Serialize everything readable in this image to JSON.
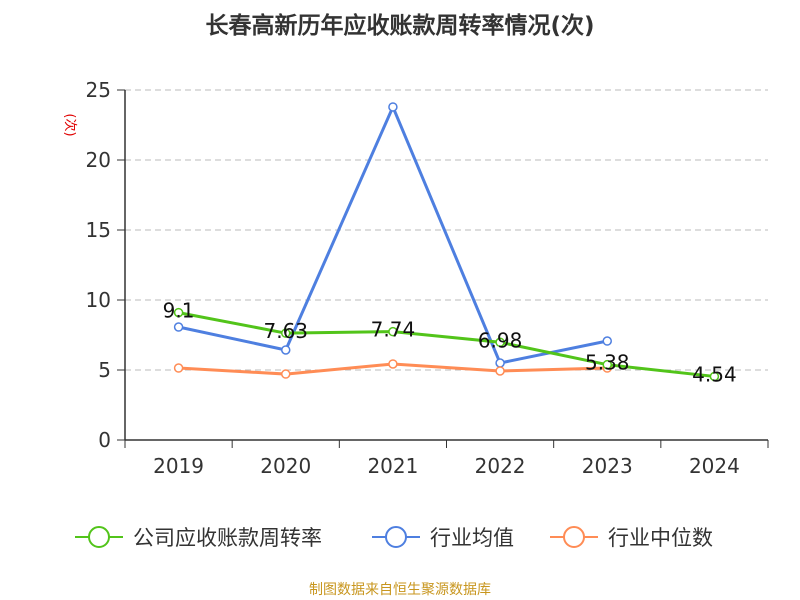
{
  "chart_data": {
    "type": "line",
    "title": "长春高新历年应收账款周转率情况(次)",
    "ylabel": "(次)",
    "xlabel": "",
    "categories": [
      "2019",
      "2020",
      "2021",
      "2022",
      "2023",
      "2024"
    ],
    "ylim": [
      0,
      25
    ],
    "yticks": [
      0,
      5,
      10,
      15,
      20,
      25
    ],
    "grid": true,
    "legend_position": "bottom",
    "series": [
      {
        "name": "公司应收账款周转率",
        "color": "#52c41a",
        "values": [
          9.1,
          7.63,
          7.74,
          6.98,
          5.38,
          4.54
        ],
        "labels": [
          "9.1",
          "7.63",
          "7.74",
          "6.98",
          "5.38",
          "4.54"
        ]
      },
      {
        "name": "行业均值",
        "color": "#4e7fe0",
        "values": [
          8.07,
          6.43,
          23.79,
          5.5,
          7.07,
          null
        ]
      },
      {
        "name": "行业中位数",
        "color": "#ff8c55",
        "values": [
          5.14,
          4.71,
          5.43,
          4.93,
          5.14,
          null
        ]
      }
    ]
  },
  "source": "制图数据来自恒生聚源数据库"
}
